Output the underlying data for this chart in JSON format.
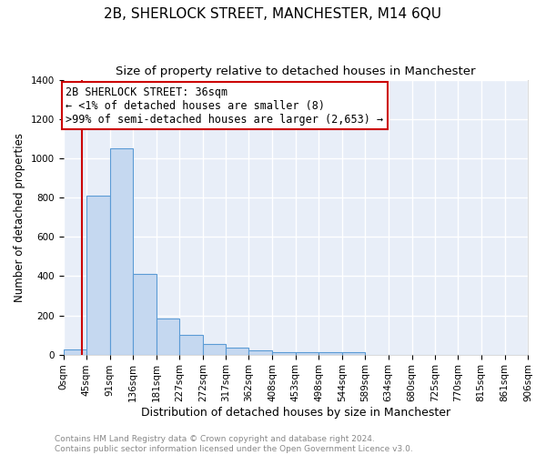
{
  "title": "2B, SHERLOCK STREET, MANCHESTER, M14 6QU",
  "subtitle": "Size of property relative to detached houses in Manchester",
  "xlabel": "Distribution of detached houses by size in Manchester",
  "ylabel": "Number of detached properties",
  "footer_line1": "Contains HM Land Registry data © Crown copyright and database right 2024.",
  "footer_line2": "Contains public sector information licensed under the Open Government Licence v3.0.",
  "bin_labels": [
    "0sqm",
    "45sqm",
    "91sqm",
    "136sqm",
    "181sqm",
    "227sqm",
    "272sqm",
    "317sqm",
    "362sqm",
    "408sqm",
    "453sqm",
    "498sqm",
    "544sqm",
    "589sqm",
    "634sqm",
    "680sqm",
    "725sqm",
    "770sqm",
    "815sqm",
    "861sqm",
    "906sqm"
  ],
  "bin_edges": [
    0,
    45,
    91,
    136,
    181,
    227,
    272,
    317,
    362,
    408,
    453,
    498,
    544,
    589,
    634,
    680,
    725,
    770,
    815,
    861,
    906
  ],
  "bar_heights": [
    25,
    810,
    1050,
    410,
    185,
    100,
    55,
    35,
    20,
    12,
    10,
    10,
    12,
    0,
    0,
    0,
    0,
    0,
    0,
    0
  ],
  "bar_color": "#c5d8f0",
  "bar_edge_color": "#5b9bd5",
  "property_size": 36,
  "vline_color": "#cc0000",
  "annotation_line1": "2B SHERLOCK STREET: 36sqm",
  "annotation_line2": "← <1% of detached houses are smaller (8)",
  "annotation_line3": ">99% of semi-detached houses are larger (2,653) →",
  "annotation_box_color": "#ffffff",
  "annotation_box_edge": "#cc0000",
  "ylim": [
    0,
    1400
  ],
  "yticks": [
    0,
    200,
    400,
    600,
    800,
    1000,
    1200,
    1400
  ],
  "background_color": "#e8eef8",
  "grid_color": "#ffffff",
  "title_fontsize": 11,
  "subtitle_fontsize": 9.5,
  "xlabel_fontsize": 9,
  "ylabel_fontsize": 8.5,
  "tick_fontsize": 7.5,
  "annotation_fontsize": 8.5,
  "footer_fontsize": 6.5,
  "footer_color": "#888888"
}
